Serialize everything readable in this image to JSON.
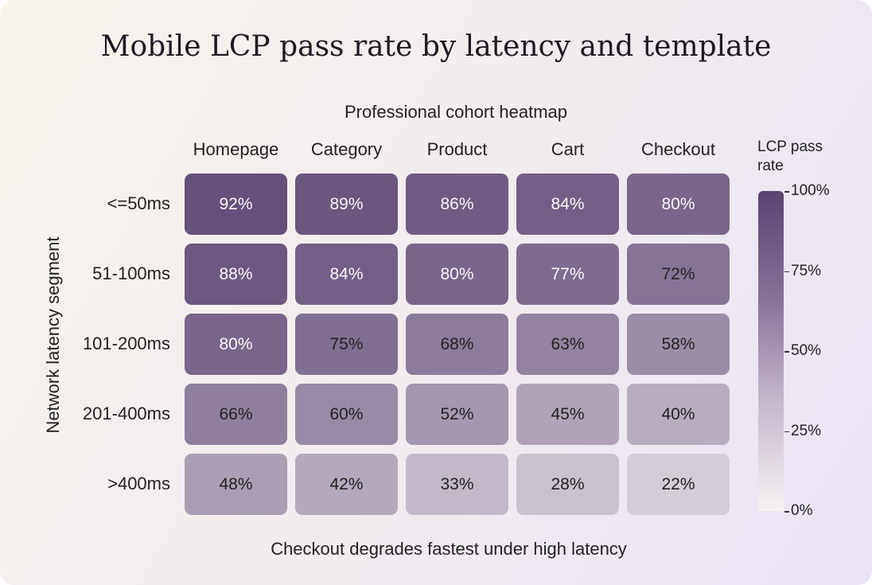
{
  "chart_data": {
    "type": "heatmap",
    "title": "Mobile LCP pass rate by latency and template",
    "subtitle": "Professional cohort heatmap",
    "ylabel": "Network latency segment",
    "columns": [
      "Homepage",
      "Category",
      "Product",
      "Cart",
      "Checkout"
    ],
    "rows": [
      "<=50ms",
      "51-100ms",
      "101-200ms",
      "201-400ms",
      ">400ms"
    ],
    "values": [
      [
        92,
        89,
        86,
        84,
        80
      ],
      [
        88,
        84,
        80,
        77,
        72
      ],
      [
        80,
        75,
        68,
        63,
        58
      ],
      [
        66,
        60,
        52,
        45,
        40
      ],
      [
        48,
        42,
        33,
        28,
        22
      ]
    ],
    "value_format": "percent",
    "colorbar": {
      "title": "LCP pass rate",
      "range": [
        0,
        100
      ],
      "ticks": [
        "100%",
        "75%",
        "50%",
        "25%",
        "0%"
      ],
      "color_low": "#f6f2f3",
      "color_high": "#5a4370"
    },
    "footer": "Checkout degrades fastest under high latency"
  }
}
